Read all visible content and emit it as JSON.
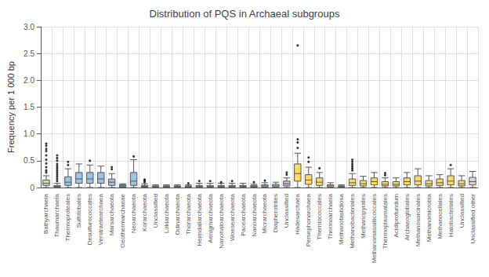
{
  "chart_data": {
    "type": "box",
    "title": "Distribution of PQS in Archaeal subgroups",
    "ylabel": "Frequency per 1 000 bp",
    "ylim": [
      0,
      3.0
    ],
    "yticks": [
      0,
      0.5,
      {
        "value": 1.0,
        "label": "1.0"
      },
      1.5,
      {
        "value": 2.0,
        "label": "2.0"
      },
      2.5,
      {
        "value": 3.0,
        "label": "3.0"
      }
    ],
    "grid": true,
    "categories": [
      "Bathyarchaeia",
      "Thaumarchaeia",
      "Thermoproteales",
      "Sulfolobales",
      "Desulfurococcales",
      "Verstraetearchaea",
      "Marsarchaeota",
      "Geothermarchaeae",
      "Neoarchaeota",
      "Korarchaeota",
      "Unclassified",
      "Lokiarchaeota",
      "Odinarchaeota",
      "Thorarchaeota",
      "Heimdallarchaeota",
      "Aenigmarchaeota",
      "Nanohaloarchaeota",
      "Woesearchaeota",
      "Pacearchaeota",
      "Nanoarchaeota",
      "Micrarchaeota",
      "Diapherotrites",
      "Unclassified",
      "Hadesarchaea",
      "Persephonarchaea",
      "Thermococcales",
      "Thermoarchaeia",
      "Methanofastidiosa",
      "Methanobacteriales",
      "Methanopyrales",
      "Methanomassiliicoccales",
      "Thermoplasmatales",
      "Acidiprofundum",
      "Archaeoglobales",
      "Methanosarcinales",
      "Methanomicrobia",
      "Methanocellales",
      "Halobacteriales",
      "Unclassified",
      "Unclassified other"
    ],
    "colors": [
      "#c6e0b4",
      "#c6e0b4",
      "#9dc3e6",
      "#9dc3e6",
      "#9dc3e6",
      "#9dc3e6",
      "#9dc3e6",
      "#9dc3e6",
      "#9dc3e6",
      "#9dc3e6",
      "#9dc3e6",
      "#bdd7ee",
      "#bdd7ee",
      "#bdd7ee",
      "#bdd7ee",
      "#bdd7ee",
      "#bdd7ee",
      "#bdd7ee",
      "#bdd7ee",
      "#bdd7ee",
      "#bdd7ee",
      "#bdd7ee",
      "#d9b3e6",
      "#ffd966",
      "#ffd966",
      "#ffd966",
      "#ffd966",
      "#ffd966",
      "#ffd966",
      "#ffd966",
      "#ffd966",
      "#ffd966",
      "#ffd966",
      "#ffd966",
      "#ffd966",
      "#ffd966",
      "#ffd966",
      "#ffd966",
      "#ffd966",
      "#d9d9d9"
    ],
    "boxes": [
      {
        "whislo": 0.0,
        "q1": 0.04,
        "median": 0.08,
        "q3": 0.14,
        "whishi": 0.22,
        "fliers": [
          0.28,
          0.32,
          0.38,
          0.45,
          0.52,
          0.6,
          0.68,
          0.72,
          0.78,
          0.82
        ]
      },
      {
        "whislo": 0.0,
        "q1": 0.01,
        "median": 0.02,
        "q3": 0.04,
        "whishi": 0.08,
        "fliers": [
          0.12,
          0.16,
          0.2,
          0.24,
          0.28,
          0.32,
          0.36,
          0.4,
          0.44,
          0.5,
          0.55,
          0.6
        ]
      },
      {
        "whislo": 0.0,
        "q1": 0.04,
        "median": 0.1,
        "q3": 0.2,
        "whishi": 0.35,
        "fliers": [
          0.42,
          0.48
        ]
      },
      {
        "whislo": 0.0,
        "q1": 0.08,
        "median": 0.16,
        "q3": 0.28,
        "whishi": 0.44,
        "fliers": []
      },
      {
        "whislo": 0.0,
        "q1": 0.08,
        "median": 0.16,
        "q3": 0.28,
        "whishi": 0.42,
        "fliers": [
          0.5
        ]
      },
      {
        "whislo": 0.0,
        "q1": 0.08,
        "median": 0.16,
        "q3": 0.28,
        "whishi": 0.4,
        "fliers": []
      },
      {
        "whislo": 0.0,
        "q1": 0.04,
        "median": 0.1,
        "q3": 0.16,
        "whishi": 0.26,
        "fliers": [
          0.34,
          0.38
        ]
      },
      {
        "whislo": 0.01,
        "q1": 0.01,
        "median": 0.03,
        "q3": 0.05,
        "whishi": 0.07,
        "fliers": []
      },
      {
        "whislo": 0.0,
        "q1": 0.04,
        "median": 0.12,
        "q3": 0.28,
        "whishi": 0.52,
        "fliers": [
          0.58
        ]
      },
      {
        "whislo": 0.0,
        "q1": 0.01,
        "median": 0.02,
        "q3": 0.04,
        "whishi": 0.07,
        "fliers": [
          0.1,
          0.13,
          0.15
        ]
      },
      {
        "whislo": 0.0,
        "q1": 0.01,
        "median": 0.02,
        "q3": 0.03,
        "whishi": 0.05,
        "fliers": []
      },
      {
        "whislo": 0.0,
        "q1": 0.01,
        "median": 0.02,
        "q3": 0.03,
        "whishi": 0.05,
        "fliers": []
      },
      {
        "whislo": 0.0,
        "q1": 0.01,
        "median": 0.02,
        "q3": 0.03,
        "whishi": 0.05,
        "fliers": []
      },
      {
        "whislo": 0.0,
        "q1": 0.01,
        "median": 0.02,
        "q3": 0.03,
        "whishi": 0.05,
        "fliers": [
          0.08
        ]
      },
      {
        "whislo": 0.0,
        "q1": 0.01,
        "median": 0.02,
        "q3": 0.04,
        "whishi": 0.08,
        "fliers": [
          0.12
        ]
      },
      {
        "whislo": 0.0,
        "q1": 0.01,
        "median": 0.02,
        "q3": 0.04,
        "whishi": 0.08,
        "fliers": [
          0.12
        ]
      },
      {
        "whislo": 0.0,
        "q1": 0.01,
        "median": 0.02,
        "q3": 0.04,
        "whishi": 0.08,
        "fliers": [
          0.1
        ]
      },
      {
        "whislo": 0.0,
        "q1": 0.01,
        "median": 0.02,
        "q3": 0.04,
        "whishi": 0.08,
        "fliers": [
          0.12
        ]
      },
      {
        "whislo": 0.0,
        "q1": 0.01,
        "median": 0.02,
        "q3": 0.04,
        "whishi": 0.08,
        "fliers": []
      },
      {
        "whislo": 0.0,
        "q1": 0.01,
        "median": 0.02,
        "q3": 0.04,
        "whishi": 0.06,
        "fliers": [
          0.1
        ]
      },
      {
        "whislo": 0.0,
        "q1": 0.01,
        "median": 0.03,
        "q3": 0.05,
        "whishi": 0.09,
        "fliers": [
          0.13
        ]
      },
      {
        "whislo": 0.0,
        "q1": 0.01,
        "median": 0.03,
        "q3": 0.06,
        "whishi": 0.1,
        "fliers": []
      },
      {
        "whislo": 0.0,
        "q1": 0.03,
        "median": 0.07,
        "q3": 0.12,
        "whishi": 0.18,
        "fliers": [
          0.24,
          0.28
        ]
      },
      {
        "whislo": 0.0,
        "q1": 0.12,
        "median": 0.26,
        "q3": 0.44,
        "whishi": 0.64,
        "fliers": [
          0.74,
          0.84,
          0.9,
          2.65
        ]
      },
      {
        "whislo": 0.0,
        "q1": 0.06,
        "median": 0.14,
        "q3": 0.24,
        "whishi": 0.38,
        "fliers": [
          0.48,
          0.56
        ]
      },
      {
        "whislo": 0.0,
        "q1": 0.04,
        "median": 0.1,
        "q3": 0.18,
        "whishi": 0.28,
        "fliers": [
          0.36
        ]
      },
      {
        "whislo": 0.0,
        "q1": 0.01,
        "median": 0.03,
        "q3": 0.05,
        "whishi": 0.09,
        "fliers": []
      },
      {
        "whislo": 0.0,
        "q1": 0.01,
        "median": 0.02,
        "q3": 0.03,
        "whishi": 0.05,
        "fliers": []
      },
      {
        "whislo": 0.0,
        "q1": 0.04,
        "median": 0.09,
        "q3": 0.16,
        "whishi": 0.26,
        "fliers": [
          0.32,
          0.36,
          0.4,
          0.44,
          0.48,
          0.52
        ]
      },
      {
        "whislo": 0.0,
        "q1": 0.03,
        "median": 0.07,
        "q3": 0.13,
        "whishi": 0.21,
        "fliers": []
      },
      {
        "whislo": 0.0,
        "q1": 0.05,
        "median": 0.11,
        "q3": 0.18,
        "whishi": 0.28,
        "fliers": []
      },
      {
        "whislo": 0.0,
        "q1": 0.03,
        "median": 0.06,
        "q3": 0.11,
        "whishi": 0.18,
        "fliers": [
          0.23,
          0.27
        ]
      },
      {
        "whislo": 0.0,
        "q1": 0.03,
        "median": 0.06,
        "q3": 0.11,
        "whishi": 0.18,
        "fliers": []
      },
      {
        "whislo": 0.0,
        "q1": 0.05,
        "median": 0.11,
        "q3": 0.18,
        "whishi": 0.28,
        "fliers": []
      },
      {
        "whislo": 0.0,
        "q1": 0.05,
        "median": 0.12,
        "q3": 0.22,
        "whishi": 0.35,
        "fliers": []
      },
      {
        "whislo": 0.0,
        "q1": 0.03,
        "median": 0.07,
        "q3": 0.13,
        "whishi": 0.22,
        "fliers": []
      },
      {
        "whislo": 0.0,
        "q1": 0.04,
        "median": 0.09,
        "q3": 0.16,
        "whishi": 0.24,
        "fliers": []
      },
      {
        "whislo": 0.0,
        "q1": 0.05,
        "median": 0.12,
        "q3": 0.22,
        "whishi": 0.35,
        "fliers": [
          0.42
        ]
      },
      {
        "whislo": 0.0,
        "q1": 0.03,
        "median": 0.07,
        "q3": 0.13,
        "whishi": 0.22,
        "fliers": []
      },
      {
        "whislo": 0.0,
        "q1": 0.05,
        "median": 0.11,
        "q3": 0.19,
        "whishi": 0.3,
        "fliers": []
      }
    ]
  }
}
